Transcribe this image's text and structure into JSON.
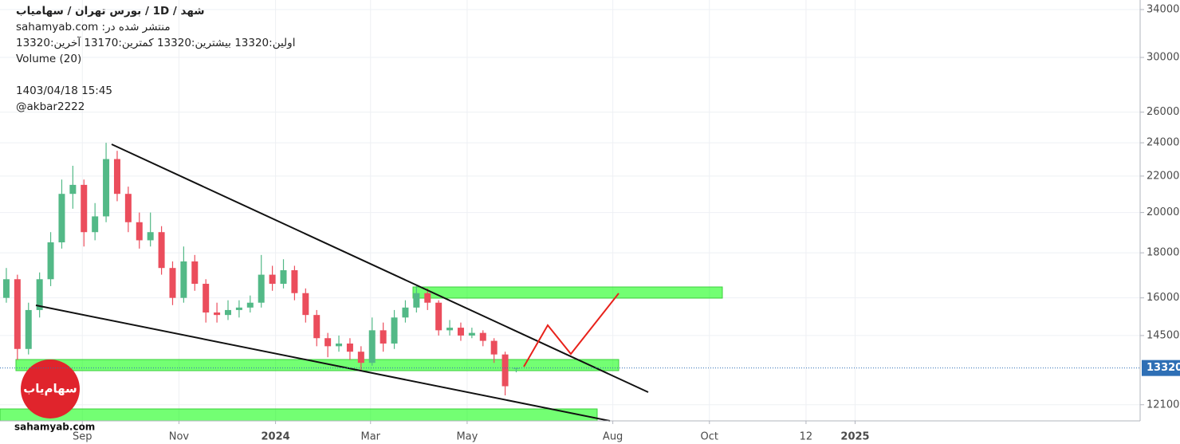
{
  "header": {
    "symbol_line": "شهد / 1D / بورس تهران / سهامیاب",
    "published": "منتشر شده در: sahamyab.com",
    "ohlc_line": "اولین:13320  بیشترین:13320  کمترین:13170  آخرین:13320",
    "volume": "Volume (20)",
    "datetime": "1403/04/18 15:45",
    "author": "@akbar2222",
    "watermark": "sahamyab.com",
    "logo": "سهام‌یاب"
  },
  "chart_data": {
    "type": "candlestick",
    "x": [
      "2023-07-15",
      "2023-07-22",
      "2023-07-29",
      "2023-08-05",
      "2023-08-12",
      "2023-08-19",
      "2023-08-26",
      "2023-09-02",
      "2023-09-09",
      "2023-09-16",
      "2023-09-23",
      "2023-09-30",
      "2023-10-07",
      "2023-10-14",
      "2023-10-21",
      "2023-10-28",
      "2023-11-04",
      "2023-11-11",
      "2023-11-18",
      "2023-11-25",
      "2023-12-02",
      "2023-12-09",
      "2023-12-16",
      "2023-12-23",
      "2023-12-30",
      "2024-01-06",
      "2024-01-13",
      "2024-01-20",
      "2024-01-27",
      "2024-02-03",
      "2024-02-10",
      "2024-02-17",
      "2024-02-24",
      "2024-03-02",
      "2024-03-09",
      "2024-03-16",
      "2024-03-23",
      "2024-03-30",
      "2024-04-06",
      "2024-04-13",
      "2024-04-20",
      "2024-04-27",
      "2024-05-04",
      "2024-05-11",
      "2024-05-18",
      "2024-05-25",
      "2024-06-01"
    ],
    "open": [
      16000,
      16800,
      14000,
      15500,
      16800,
      18500,
      21000,
      21500,
      19000,
      19800,
      23000,
      21000,
      19500,
      18600,
      19000,
      17300,
      16000,
      17600,
      16600,
      15400,
      15300,
      15500,
      15600,
      15800,
      17000,
      16600,
      17200,
      16200,
      15300,
      14400,
      14100,
      14200,
      13900,
      13500,
      14700,
      14200,
      15200,
      15600,
      16200,
      15800,
      14700,
      14800,
      14500,
      14600,
      14300,
      13800,
      13320
    ],
    "high": [
      17300,
      17000,
      15800,
      17100,
      19000,
      21800,
      22600,
      21800,
      20500,
      24000,
      23500,
      21400,
      20000,
      20000,
      19300,
      17600,
      18300,
      17900,
      16800,
      15800,
      15900,
      15900,
      16100,
      17900,
      17400,
      17700,
      17400,
      16400,
      15500,
      14600,
      14500,
      14400,
      14100,
      15200,
      15000,
      15500,
      15900,
      16500,
      16400,
      15900,
      15100,
      15000,
      14800,
      14700,
      14400,
      13900,
      13320
    ],
    "low": [
      15800,
      13600,
      13800,
      15200,
      16500,
      18200,
      20200,
      18300,
      18600,
      19500,
      20600,
      19000,
      18200,
      18300,
      17000,
      15700,
      15800,
      16300,
      15000,
      15000,
      15100,
      15200,
      15400,
      15600,
      16300,
      16400,
      15900,
      15000,
      14100,
      13700,
      13900,
      13600,
      13200,
      13400,
      13900,
      14000,
      15000,
      15400,
      15500,
      14500,
      14500,
      14300,
      14400,
      14100,
      13500,
      12400,
      13170
    ],
    "close": [
      16800,
      14000,
      15500,
      16800,
      18500,
      21000,
      21500,
      19000,
      19800,
      23000,
      21000,
      19500,
      18600,
      19000,
      17300,
      16000,
      17600,
      16600,
      15400,
      15300,
      15500,
      15600,
      15800,
      17000,
      16600,
      17200,
      16200,
      15300,
      14400,
      14100,
      14200,
      13900,
      13500,
      14700,
      14200,
      15200,
      15600,
      16200,
      15800,
      14700,
      14800,
      14500,
      14600,
      14300,
      13800,
      12700,
      13320
    ],
    "up_color": "#53b987",
    "down_color": "#eb4d5c",
    "log_scale": true,
    "grid": true,
    "xlim": [
      "2023-07-11",
      "2025-06-30"
    ],
    "xticks": [
      {
        "value": "2023-09-01",
        "label": "Sep"
      },
      {
        "value": "2023-11-01",
        "label": "Nov"
      },
      {
        "value": "2024-01-01",
        "label": "2024"
      },
      {
        "value": "2024-03-01",
        "label": "Mar"
      },
      {
        "value": "2024-05-01",
        "label": "May"
      },
      {
        "value": "2024-08-01",
        "label": "Aug"
      },
      {
        "value": "2024-10-01",
        "label": "Oct"
      },
      {
        "value": "2024-12-01",
        "label": "12"
      },
      {
        "value": "2025-01-01",
        "label": "2025"
      }
    ],
    "ylim": [
      11600,
      34860
    ],
    "yticks": [
      34000,
      30000,
      26000,
      24000,
      22000,
      20000,
      18000,
      16000,
      14500,
      12100
    ],
    "last_price": 13320,
    "last_price_color": "#2e6fb5"
  }
}
